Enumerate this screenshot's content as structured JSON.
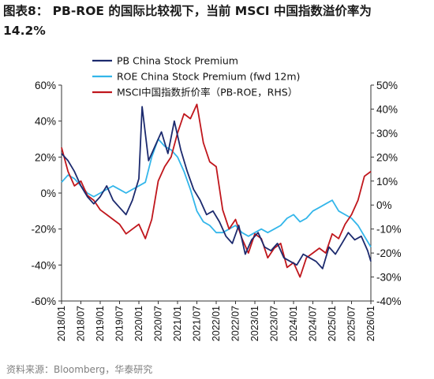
{
  "title_line1": "图表8：  PB-ROE  的国际比较视下，当前  MSCI  中国指数溢价率为",
  "title_line2": "14.2%",
  "source": "资料来源：Bloomberg，华泰研究",
  "colors": {
    "pb": "#1c2a6e",
    "roe": "#33b6ea",
    "msci": "#c0161c",
    "axis": "#333333"
  },
  "chart_data": {
    "type": "line",
    "x_range": [
      "2018-01",
      "2026-01"
    ],
    "x_ticks": [
      "2018/01",
      "2018/07",
      "2019/01",
      "2019/07",
      "2020/01",
      "2020/07",
      "2021/01",
      "2021/07",
      "2022/01",
      "2022/07",
      "2023/01",
      "2023/07",
      "2024/01",
      "2024/07",
      "2025/01",
      "2025/07",
      "2026/01"
    ],
    "y_left": {
      "range": [
        -60,
        60
      ],
      "ticks": [
        "60%",
        "40%",
        "20%",
        "0%",
        "-20%",
        "-40%",
        "-60%"
      ],
      "tick_values": [
        60,
        40,
        20,
        0,
        -20,
        -40,
        -60
      ]
    },
    "y_right": {
      "range": [
        -40,
        50
      ],
      "ticks": [
        "50%",
        "40%",
        "30%",
        "20%",
        "10%",
        "0%",
        "-10%",
        "-20%",
        "-30%",
        "-40%"
      ],
      "tick_values": [
        50,
        40,
        30,
        20,
        10,
        0,
        -10,
        -20,
        -30,
        -40
      ]
    },
    "legend": {
      "position": "top-left"
    },
    "series": [
      {
        "name": "PB China Stock Premium",
        "axis": "left",
        "x": [
          "2018-01",
          "2018-03",
          "2018-05",
          "2018-07",
          "2018-09",
          "2018-11",
          "2019-01",
          "2019-03",
          "2019-05",
          "2019-07",
          "2019-09",
          "2019-11",
          "2020-01",
          "2020-02",
          "2020-04",
          "2020-06",
          "2020-08",
          "2020-10",
          "2020-12",
          "2021-02",
          "2021-04",
          "2021-06",
          "2021-08",
          "2021-10",
          "2021-12",
          "2022-02",
          "2022-04",
          "2022-06",
          "2022-08",
          "2022-10",
          "2022-12",
          "2023-02",
          "2023-04",
          "2023-06",
          "2023-08",
          "2023-10",
          "2023-12",
          "2024-02",
          "2024-04",
          "2024-06",
          "2024-08",
          "2024-10",
          "2024-12",
          "2025-02",
          "2025-04",
          "2025-06",
          "2025-08",
          "2025-10",
          "2025-12",
          "2026-01"
        ],
        "values": [
          22,
          18,
          12,
          4,
          -2,
          -6,
          -2,
          4,
          -4,
          -8,
          -12,
          -4,
          8,
          48,
          18,
          26,
          34,
          22,
          40,
          24,
          12,
          2,
          -4,
          -12,
          -10,
          -16,
          -24,
          -28,
          -18,
          -34,
          -26,
          -22,
          -30,
          -32,
          -28,
          -36,
          -38,
          -40,
          -34,
          -36,
          -38,
          -42,
          -30,
          -34,
          -28,
          -22,
          -26,
          -24,
          -32,
          -38
        ]
      },
      {
        "name": "ROE China Stock Premium (fwd 12m)",
        "axis": "left",
        "x": [
          "2018-01",
          "2018-03",
          "2018-05",
          "2018-07",
          "2018-09",
          "2018-11",
          "2019-01",
          "2019-03",
          "2019-05",
          "2019-07",
          "2019-09",
          "2019-11",
          "2020-01",
          "2020-03",
          "2020-05",
          "2020-07",
          "2020-09",
          "2020-11",
          "2021-01",
          "2021-03",
          "2021-05",
          "2021-07",
          "2021-09",
          "2021-11",
          "2022-01",
          "2022-03",
          "2022-05",
          "2022-07",
          "2022-09",
          "2022-11",
          "2023-01",
          "2023-03",
          "2023-05",
          "2023-07",
          "2023-09",
          "2023-11",
          "2024-01",
          "2024-03",
          "2024-05",
          "2024-07",
          "2024-09",
          "2024-11",
          "2025-01",
          "2025-03",
          "2025-05",
          "2025-07",
          "2025-09",
          "2025-11",
          "2026-01"
        ],
        "values": [
          6,
          10,
          8,
          4,
          0,
          -2,
          0,
          2,
          4,
          2,
          0,
          2,
          4,
          6,
          20,
          30,
          26,
          24,
          20,
          12,
          2,
          -10,
          -16,
          -18,
          -22,
          -22,
          -20,
          -18,
          -22,
          -24,
          -22,
          -20,
          -22,
          -20,
          -18,
          -14,
          -12,
          -16,
          -14,
          -10,
          -8,
          -6,
          -4,
          -10,
          -12,
          -14,
          -18,
          -24,
          -30
        ]
      }
    ],
    "series_right": [
      {
        "name": "MSCI中国指数折价率（PB-ROE，RHS）",
        "axis": "right",
        "x": [
          "2018-01",
          "2018-03",
          "2018-05",
          "2018-07",
          "2018-09",
          "2018-11",
          "2019-01",
          "2019-03",
          "2019-05",
          "2019-07",
          "2019-09",
          "2019-11",
          "2020-01",
          "2020-03",
          "2020-05",
          "2020-07",
          "2020-09",
          "2020-11",
          "2021-01",
          "2021-03",
          "2021-05",
          "2021-07",
          "2021-09",
          "2021-11",
          "2022-01",
          "2022-03",
          "2022-05",
          "2022-07",
          "2022-09",
          "2022-11",
          "2023-01",
          "2023-03",
          "2023-05",
          "2023-07",
          "2023-09",
          "2023-11",
          "2024-01",
          "2024-03",
          "2024-05",
          "2024-07",
          "2024-09",
          "2024-11",
          "2025-01",
          "2025-03",
          "2025-05",
          "2025-07",
          "2025-09",
          "2025-11",
          "2026-01"
        ],
        "values": [
          24,
          14,
          8,
          10,
          4,
          2,
          -2,
          -4,
          -6,
          -8,
          -12,
          -10,
          -8,
          -14,
          -6,
          10,
          16,
          20,
          30,
          38,
          36,
          42,
          26,
          18,
          16,
          -2,
          -10,
          -6,
          -14,
          -20,
          -12,
          -14,
          -22,
          -18,
          -16,
          -26,
          -24,
          -30,
          -22,
          -20,
          -18,
          -20,
          -12,
          -14,
          -8,
          -4,
          2,
          12,
          14
        ]
      }
    ]
  }
}
